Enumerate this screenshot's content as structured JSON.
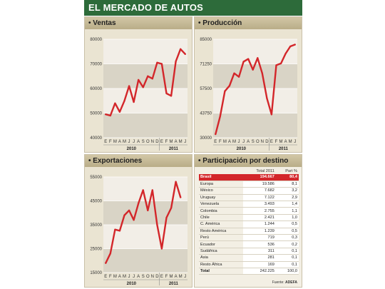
{
  "title": "EL MERCADO DE AUTOS",
  "colors": {
    "header_bg": "#2d6b3a",
    "line": "#d3262a",
    "panel_bg": "#eae4d2",
    "highlight": "#d3262a"
  },
  "months": [
    "E",
    "F",
    "M",
    "A",
    "M",
    "J",
    "J",
    "A",
    "S",
    "O",
    "N",
    "D",
    "E",
    "F",
    "M",
    "A",
    "M",
    "J"
  ],
  "years": [
    "2010",
    "2011"
  ],
  "charts": {
    "ventas": {
      "title": "Ventas"
    },
    "produccion": {
      "title": "Producción"
    },
    "exportaciones": {
      "title": "Exportaciones"
    }
  },
  "chart_data": [
    {
      "type": "line",
      "title": "Ventas",
      "ylim": [
        40000,
        80000
      ],
      "yticks": [
        40000,
        50000,
        60000,
        70000,
        80000
      ],
      "ytick_labels": [
        "40000",
        "50000",
        "60000",
        "70000",
        "80000"
      ],
      "x": [
        "E",
        "F",
        "M",
        "A",
        "M",
        "J",
        "J",
        "A",
        "S",
        "O",
        "N",
        "D",
        "E",
        "F",
        "M",
        "A",
        "M",
        "J"
      ],
      "values": [
        49500,
        49000,
        54000,
        50500,
        55000,
        61000,
        54500,
        63500,
        60500,
        65000,
        64000,
        70500,
        70000,
        58000,
        57000,
        71000,
        76000,
        74000
      ]
    },
    {
      "type": "line",
      "title": "Producción",
      "ylim": [
        30000,
        85000
      ],
      "yticks": [
        30000,
        43750,
        57500,
        71250,
        85000
      ],
      "ytick_labels": [
        "30000",
        "43750",
        "57500",
        "71250",
        "85000"
      ],
      "x": [
        "E",
        "F",
        "M",
        "A",
        "M",
        "J",
        "J",
        "A",
        "S",
        "O",
        "N",
        "D",
        "E",
        "F",
        "M",
        "A",
        "M",
        "J"
      ],
      "values": [
        32000,
        42000,
        56000,
        59000,
        66000,
        64000,
        72500,
        74000,
        68000,
        74500,
        66000,
        52000,
        43000,
        70500,
        71500,
        77000,
        81000,
        82000
      ]
    },
    {
      "type": "line",
      "title": "Exportaciones",
      "ylim": [
        15000,
        55000
      ],
      "yticks": [
        15000,
        25000,
        35000,
        45000,
        55000
      ],
      "ytick_labels": [
        "15000",
        "25000",
        "35000",
        "45000",
        "55000"
      ],
      "x": [
        "E",
        "F",
        "M",
        "A",
        "M",
        "J",
        "J",
        "A",
        "S",
        "O",
        "N",
        "D",
        "E",
        "F",
        "M",
        "A",
        "M",
        "J"
      ],
      "values": [
        19000,
        23000,
        33000,
        32500,
        39000,
        41000,
        37000,
        44000,
        49500,
        41000,
        49500,
        35000,
        25000,
        38000,
        42000,
        53000,
        46500,
        null
      ]
    }
  ],
  "participacion": {
    "title": "Participación por destino",
    "col_total": "Total 2011",
    "col_part": "Part %",
    "rows": [
      {
        "country": "Brasil",
        "total": "194.667",
        "part": "80,4",
        "highlight": true
      },
      {
        "country": "Europa",
        "total": "19.586",
        "part": "8,1"
      },
      {
        "country": "México",
        "total": "7.682",
        "part": "3,2"
      },
      {
        "country": "Uruguay",
        "total": "7.122",
        "part": "2,9"
      },
      {
        "country": "Venezuela",
        "total": "3.493",
        "part": "1,4"
      },
      {
        "country": "Colombia",
        "total": "2.755",
        "part": "1,1"
      },
      {
        "country": "Chile",
        "total": "2.421",
        "part": "1,0"
      },
      {
        "country": "C. América",
        "total": "1.244",
        "part": "0,5"
      },
      {
        "country": "Resto América",
        "total": "1.239",
        "part": "0,5"
      },
      {
        "country": "Perú",
        "total": "719",
        "part": "0,3"
      },
      {
        "country": "Ecuador",
        "total": "536",
        "part": "0,2"
      },
      {
        "country": "Sudáfrica",
        "total": "311",
        "part": "0,1"
      },
      {
        "country": "Asia",
        "total": "281",
        "part": "0,1"
      },
      {
        "country": "Resto África",
        "total": "169",
        "part": "0,1"
      },
      {
        "country": "Total",
        "total": "242.225",
        "part": "100,0"
      }
    ],
    "source_label": "Fuente:",
    "source_value": "ADEFA"
  }
}
